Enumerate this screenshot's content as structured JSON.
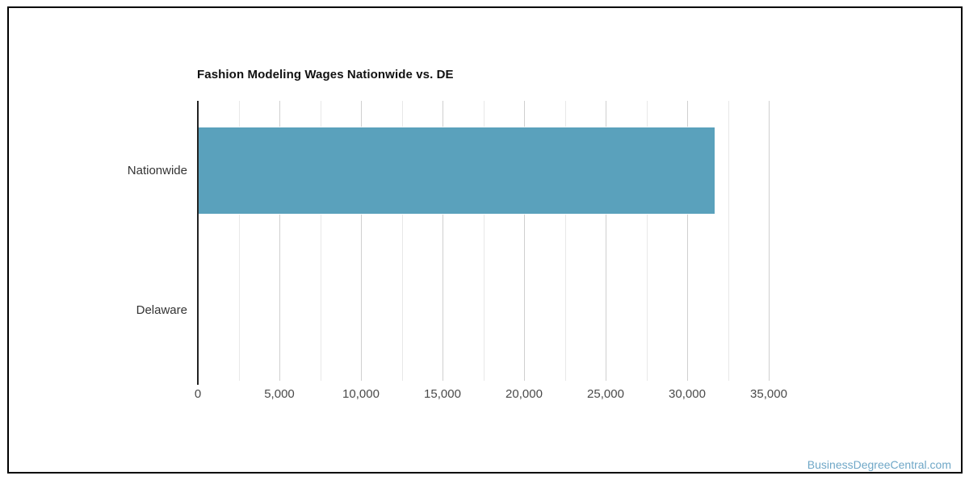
{
  "chart_data": {
    "type": "bar",
    "orientation": "horizontal",
    "title": "Fashion Modeling Wages Nationwide vs. DE",
    "categories": [
      "Nationwide",
      "Delaware"
    ],
    "values": [
      31660,
      0
    ],
    "xlabel": "",
    "ylabel": "",
    "xlim": [
      0,
      35000
    ],
    "xticks": [
      0,
      5000,
      10000,
      15000,
      20000,
      25000,
      30000,
      35000
    ],
    "xtick_labels": [
      "0",
      "5,000",
      "10,000",
      "15,000",
      "20,000",
      "25,000",
      "30,000",
      "35,000"
    ],
    "minor_gridline_step": 2500,
    "grid": "vertical-only",
    "legend": false,
    "bar_color": "#5AA1BC",
    "gridline_major_color": "#CFCFCF",
    "gridline_minor_color": "#E8E8E8",
    "axis_line_color": "#222222"
  },
  "watermark": {
    "text": "BusinessDegreeCentral.com",
    "color": "#6FA7C7"
  }
}
